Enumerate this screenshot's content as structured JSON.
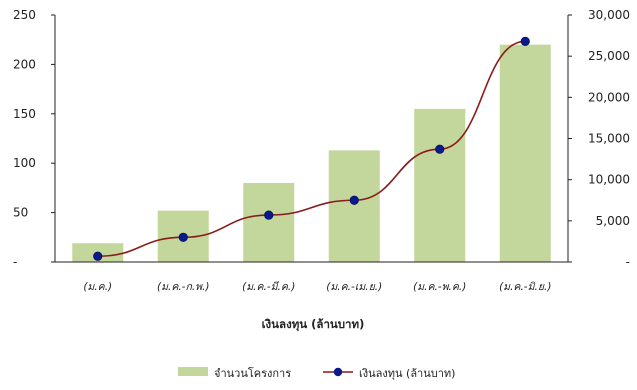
{
  "chart_data": {
    "type": "bar",
    "categories": [
      "(ม.ค.)",
      "(ม.ค.-ก.พ.)",
      "(ม.ค.-มี.ค.)",
      "(ม.ค.-เม.ย.)",
      "(ม.ค.-พ.ค.)",
      "(ม.ค.-มิ.ย.)"
    ],
    "xlabel": "เงินลงทุน (ล้านบาท)",
    "y_left": {
      "ylim": [
        0,
        250
      ],
      "ticks": [
        0,
        50,
        100,
        150,
        200,
        250
      ],
      "tick_labels": [
        "-",
        "50",
        "100",
        "150",
        "200",
        "250"
      ]
    },
    "y_right": {
      "ylim": [
        0,
        30000
      ],
      "ticks": [
        0,
        5000,
        10000,
        15000,
        20000,
        25000,
        30000
      ],
      "tick_labels": [
        "-",
        "5,000",
        "10,000",
        "15,000",
        "20,000",
        "25,000",
        "30,000"
      ]
    },
    "series": [
      {
        "name": "จำนวนโครงการ",
        "type": "bar",
        "axis": "left",
        "color": "#c3d69b",
        "values": [
          19,
          52,
          80,
          113,
          155,
          220
        ]
      },
      {
        "name": "เงินลงทุน  (ล้านบาท)",
        "type": "line",
        "axis": "right",
        "color": "#8b1a1a",
        "marker_color": "#0a1a8a",
        "values": [
          700,
          3000,
          5700,
          7500,
          13700,
          26800
        ]
      }
    ],
    "grid": false,
    "legend_position": "bottom"
  }
}
